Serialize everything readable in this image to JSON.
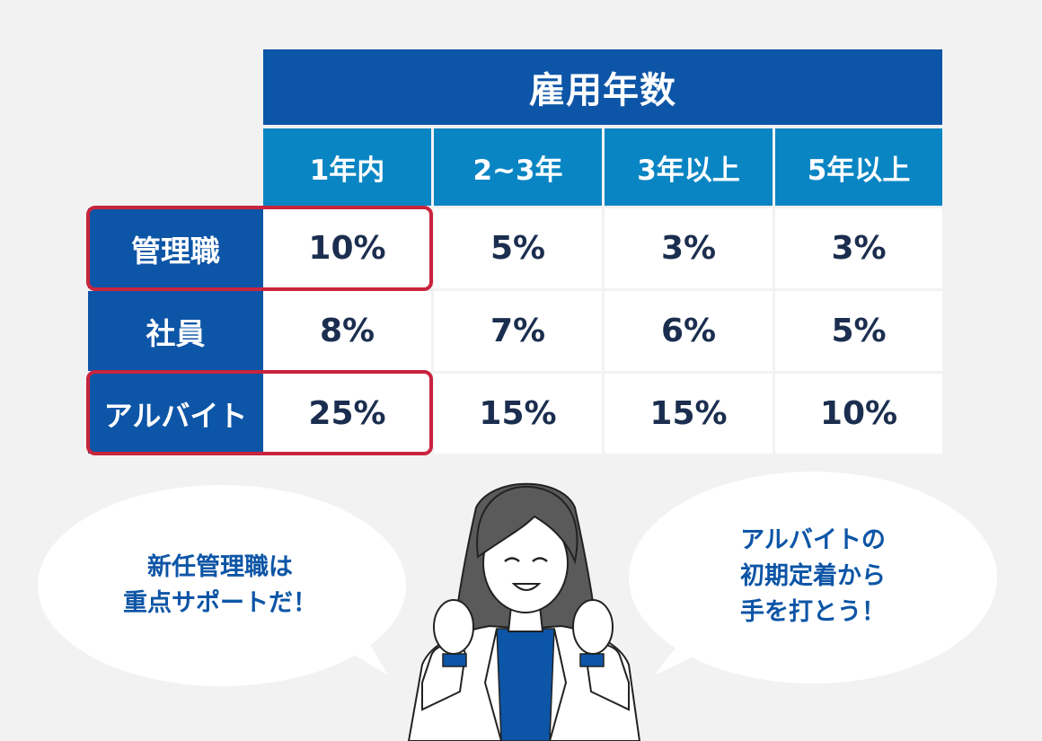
{
  "table": {
    "title": "雇用年数",
    "columns": [
      "1年内",
      "2~3年",
      "3年以上",
      "5年以上"
    ],
    "rows": [
      {
        "label": "管理職",
        "values": [
          "10%",
          "5%",
          "3%",
          "3%"
        ]
      },
      {
        "label": "社員",
        "values": [
          "8%",
          "7%",
          "6%",
          "5%"
        ]
      },
      {
        "label": "アルバイト",
        "values": [
          "25%",
          "15%",
          "15%",
          "10%"
        ]
      }
    ]
  },
  "bubbles": {
    "left": {
      "line1": "新任管理職は",
      "line2": "重点サポートだ！"
    },
    "right": {
      "line1": "アルバイトの",
      "line2": "初期定着から",
      "line3": "手を打とう！"
    }
  },
  "colors": {
    "header_dark": "#0d55a6",
    "header_light": "#0a85c3",
    "highlight": "#c8243d",
    "text_dark": "#1b2e4f",
    "background": "#f2f2f2"
  }
}
